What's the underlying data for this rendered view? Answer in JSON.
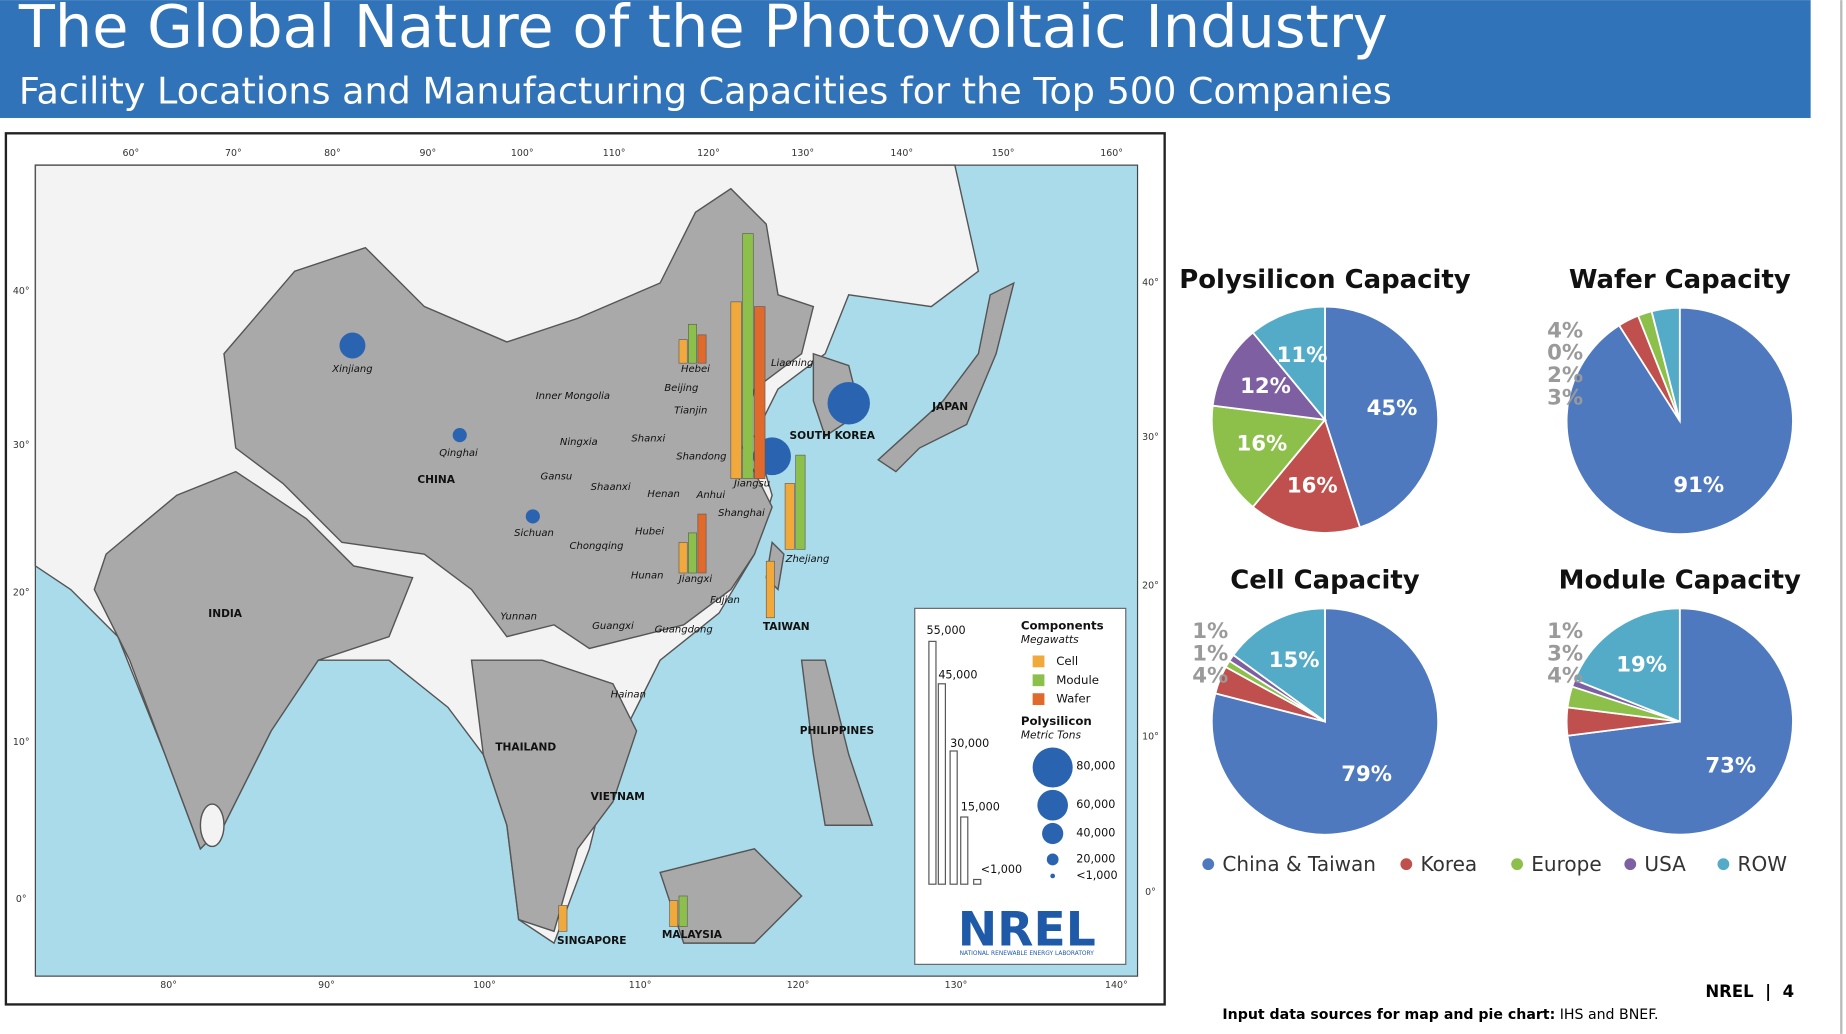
{
  "header": {
    "title": "The Global Nature of the Photovoltaic Industry",
    "subtitle": "Facility Locations and Manufacturing Capacities for the Top 500 Companies"
  },
  "map": {
    "top_ticks": [
      "60°",
      "70°",
      "80°",
      "90°",
      "100°",
      "110°",
      "120°",
      "130°",
      "140°",
      "150°",
      "160°"
    ],
    "bottom_ticks": [
      "80°",
      "90°",
      "100°",
      "110°",
      "120°",
      "130°",
      "140°"
    ],
    "left_ticks": [
      "40°",
      "30°",
      "20°",
      "10°",
      "0°"
    ],
    "right_ticks": [
      "40°",
      "30°",
      "20°",
      "10°",
      "0°"
    ],
    "labels": [
      "Xinjiang",
      "Inner Mongolia",
      "Hebei",
      "Beijing",
      "Tianjin",
      "Liaoning",
      "Qinghai",
      "Ningxia",
      "Shanxi",
      "Shandong",
      "CHINA",
      "Gansu",
      "Shaanxi",
      "Henan",
      "Anhui",
      "Jiangsu",
      "Shanghai",
      "Sichuan",
      "Chongqing",
      "Hubei",
      "Hunan",
      "Jiangxi",
      "Zhejiang",
      "Fujian",
      "Yunnan",
      "Guangxi",
      "Guangdong",
      "Hainan",
      "TAIWAN",
      "SOUTH KOREA",
      "JAPAN",
      "INDIA",
      "THAILAND",
      "VIETNAM",
      "PHILIPPINES",
      "SINGAPORE",
      "MALAYSIA"
    ],
    "legend": {
      "bar_scale": [
        "55,000",
        "45,000",
        "30,000",
        "15,000",
        "<1,000"
      ],
      "components_title": "Components",
      "components_unit": "Megawatts",
      "components": [
        "Cell",
        "Module",
        "Wafer"
      ],
      "poly_title": "Polysilicon",
      "poly_unit": "Metric Tons",
      "poly_scale": [
        "80,000",
        "60,000",
        "40,000",
        "20,000",
        "<1,000"
      ]
    },
    "logo": {
      "name": "NREL",
      "full": "NATIONAL RENEWABLE ENERGY LABORATORY"
    }
  },
  "chart_data": [
    {
      "type": "pie",
      "title": "Polysilicon Capacity",
      "categories": [
        "China & Taiwan",
        "Korea",
        "Europe",
        "USA",
        "ROW"
      ],
      "values": [
        45,
        16,
        16,
        12,
        11
      ],
      "value_labels": [
        "45%",
        "16%",
        "16%",
        "12%",
        "11%"
      ],
      "colors": [
        "#4f79bf",
        "#c0504d",
        "#8cc04b",
        "#7e5fa2",
        "#54abc8"
      ]
    },
    {
      "type": "pie",
      "title": "Wafer Capacity",
      "categories": [
        "China & Taiwan",
        "Korea",
        "Europe",
        "USA",
        "ROW"
      ],
      "values": [
        91,
        3,
        2,
        0,
        4
      ],
      "value_labels": [
        "91%",
        "3%",
        "2%",
        "0%",
        "4%"
      ],
      "colors": [
        "#4f79bf",
        "#c0504d",
        "#8cc04b",
        "#7e5fa2",
        "#54abc8"
      ]
    },
    {
      "type": "pie",
      "title": "Cell Capacity",
      "categories": [
        "China & Taiwan",
        "Korea",
        "Europe",
        "USA",
        "ROW"
      ],
      "values": [
        79,
        4,
        1,
        1,
        15
      ],
      "value_labels": [
        "79%",
        "4%",
        "1%",
        "1%",
        "15%"
      ],
      "colors": [
        "#4f79bf",
        "#c0504d",
        "#8cc04b",
        "#7e5fa2",
        "#54abc8"
      ]
    },
    {
      "type": "pie",
      "title": "Module Capacity",
      "categories": [
        "China & Taiwan",
        "Korea",
        "Europe",
        "USA",
        "ROW"
      ],
      "values": [
        73,
        4,
        3,
        1,
        19
      ],
      "value_labels": [
        "73%",
        "4%",
        "3%",
        "1%",
        "19%"
      ],
      "colors": [
        "#4f79bf",
        "#c0504d",
        "#8cc04b",
        "#7e5fa2",
        "#54abc8"
      ]
    }
  ],
  "footer": {
    "page": "NREL  |  4",
    "source_label": "Input data sources for map and pie chart:",
    "source": " IHS and BNEF."
  }
}
